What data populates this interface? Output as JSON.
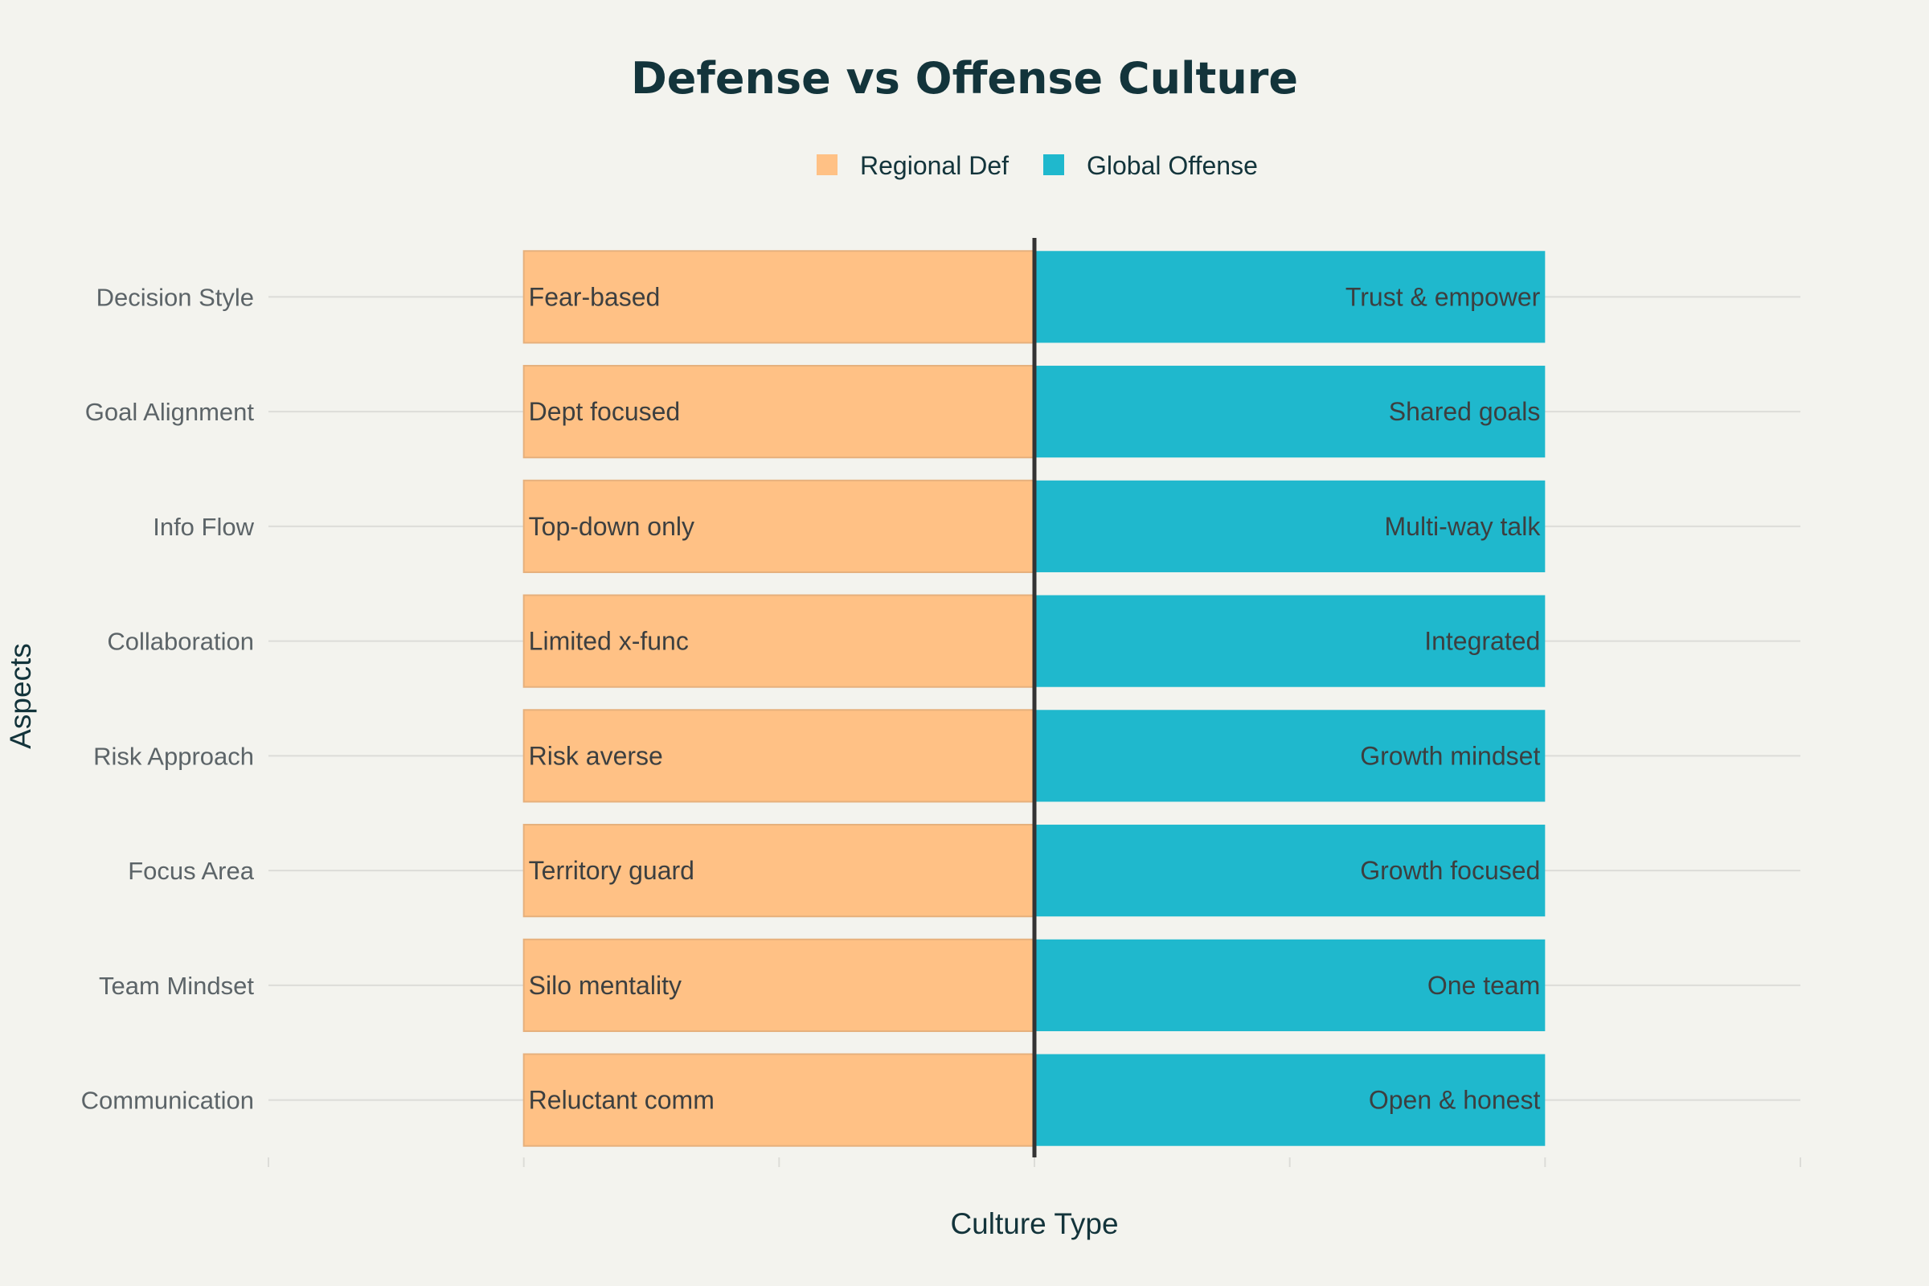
{
  "chart_data": {
    "type": "bar",
    "orientation": "horizontal",
    "diverging": true,
    "title": "Defense vs Offense Culture",
    "xlabel": "Culture Type",
    "ylabel": "Aspects",
    "xlim": [
      -3,
      3
    ],
    "legend_position": "top-center",
    "grid": true,
    "categories": [
      "Decision Style",
      "Goal Alignment",
      "Info Flow",
      "Collaboration",
      "Risk Approach",
      "Focus Area",
      "Team Mindset",
      "Communication"
    ],
    "series": [
      {
        "name": "Regional Def",
        "color": "#ffc185",
        "values": [
          -2,
          -2,
          -2,
          -2,
          -2,
          -2,
          -2,
          -2
        ],
        "labels": [
          "Fear-based",
          "Dept focused",
          "Top-down only",
          "Limited x-func",
          "Risk averse",
          "Territory guard",
          "Silo mentality",
          "Reluctant comm"
        ]
      },
      {
        "name": "Global Offense",
        "color": "#1fb8cd",
        "values": [
          2,
          2,
          2,
          2,
          2,
          2,
          2,
          2
        ],
        "labels": [
          "Trust & empower",
          "Shared goals",
          "Multi-way talk",
          "Integrated",
          "Growth mindset",
          "Growth focused",
          "One team",
          "Open & honest"
        ]
      }
    ]
  }
}
